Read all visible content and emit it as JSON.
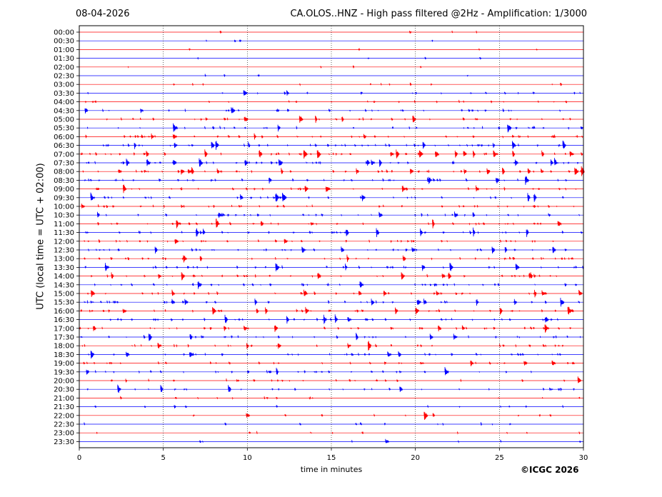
{
  "header": {
    "date": "08-04-2026",
    "title": "CA.OLOS..HNZ - High pass filtered @2Hz - Amplification: 1/3000"
  },
  "credit": "©ICGC 2026",
  "chart_data": {
    "type": "line",
    "title": "CA.OLOS..HNZ - High pass filtered @2Hz - Amplification: 1/3000",
    "xlabel": "time in minutes",
    "ylabel": "UTC (local time = UTC + 02:00)",
    "xlim": [
      0,
      30
    ],
    "x_ticks": [
      0,
      5,
      10,
      15,
      20,
      25,
      30
    ],
    "x_grid": "dotted vertical lines at 5-minute intervals",
    "rows": [
      "00:00",
      "00:30",
      "01:00",
      "01:30",
      "02:00",
      "02:30",
      "03:00",
      "03:30",
      "04:00",
      "04:30",
      "05:00",
      "05:30",
      "06:00",
      "06:30",
      "07:00",
      "07:30",
      "08:00",
      "08:30",
      "09:00",
      "09:30",
      "10:00",
      "10:30",
      "11:00",
      "11:30",
      "12:00",
      "12:30",
      "13:00",
      "13:30",
      "14:00",
      "14:30",
      "15:00",
      "15:30",
      "16:00",
      "16:30",
      "17:00",
      "17:30",
      "18:00",
      "18:30",
      "19:00",
      "19:30",
      "20:00",
      "20:30",
      "21:00",
      "21:30",
      "22:00",
      "22:30",
      "23:00",
      "23:30"
    ],
    "row_colors": [
      "#ff0000",
      "#0000ff"
    ],
    "activity": [
      0.05,
      0.05,
      0.05,
      0.05,
      0.05,
      0.05,
      0.15,
      0.25,
      0.3,
      0.45,
      0.5,
      0.55,
      0.65,
      0.75,
      0.75,
      0.75,
      0.75,
      0.6,
      0.55,
      0.55,
      0.6,
      0.55,
      0.55,
      0.55,
      0.55,
      0.6,
      0.6,
      0.55,
      0.55,
      0.55,
      0.55,
      0.6,
      0.6,
      0.6,
      0.6,
      0.55,
      0.55,
      0.55,
      0.5,
      0.5,
      0.35,
      0.4,
      0.2,
      0.15,
      0.15,
      0.15,
      0.15,
      0.1
    ]
  }
}
